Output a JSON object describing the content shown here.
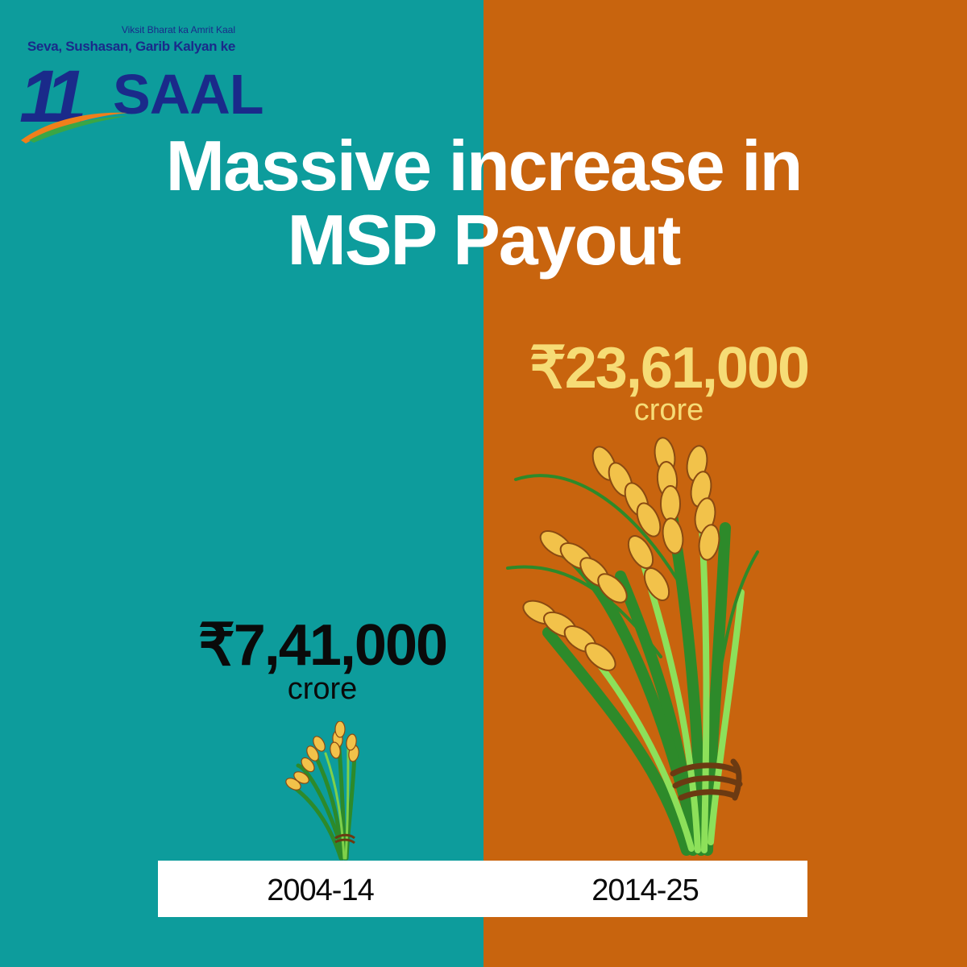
{
  "logo": {
    "tagline_top": "Viksit Bharat ka Amrit Kaal",
    "tagline_main": "Seva, Sushasan, Garib Kalyan ke",
    "number": "11",
    "word": "SAAL"
  },
  "headline": {
    "line1": "Massive increase in",
    "line2": "MSP Payout"
  },
  "periods": [
    {
      "label": "2004-14",
      "amount": "₹7,41,000",
      "unit": "crore"
    },
    {
      "label": "2014-25",
      "amount": "₹23,61,000",
      "unit": "crore"
    }
  ],
  "colors": {
    "left_background": "#0d9c9c",
    "right_background": "#c8640e",
    "logo_blue": "#1a2a8a",
    "highlight_yellow": "#f6dc76"
  },
  "icons": [
    "wheat-bundle-small-icon",
    "wheat-bundle-large-icon"
  ]
}
